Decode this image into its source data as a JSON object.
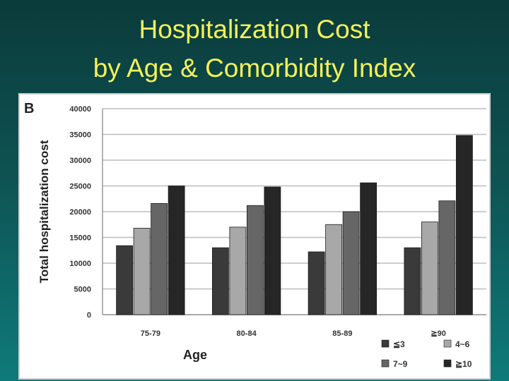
{
  "slide": {
    "title_line1": "Hospitalization Cost",
    "title_line2": "by Age & Comorbidity Index"
  },
  "colors": {
    "title": "#f2f25a",
    "background_top": "#0b3b3b",
    "background_bottom": "#0f7a7a",
    "series": [
      "#3a3a3a",
      "#a8a8a8",
      "#666666",
      "#262626"
    ]
  },
  "chart_data": {
    "type": "bar",
    "panel_label": "B",
    "categories": [
      "75-79",
      "80-84",
      "85-89",
      "≧90"
    ],
    "series": [
      {
        "name": "≦3",
        "values": [
          13400,
          13000,
          12200,
          13000
        ]
      },
      {
        "name": "4~6",
        "values": [
          16800,
          17000,
          17500,
          18000
        ]
      },
      {
        "name": "7~9",
        "values": [
          21600,
          21200,
          20000,
          22100
        ]
      },
      {
        "name": "≧10",
        "values": [
          25000,
          24800,
          25600,
          34800
        ]
      }
    ],
    "xlabel": "Age",
    "ylabel": "Total hospitalization cost",
    "ylim": [
      0,
      40000
    ],
    "yticks": [
      0,
      5000,
      10000,
      15000,
      20000,
      25000,
      30000,
      35000,
      40000
    ],
    "grid": true,
    "legend_position": "bottom-right"
  }
}
